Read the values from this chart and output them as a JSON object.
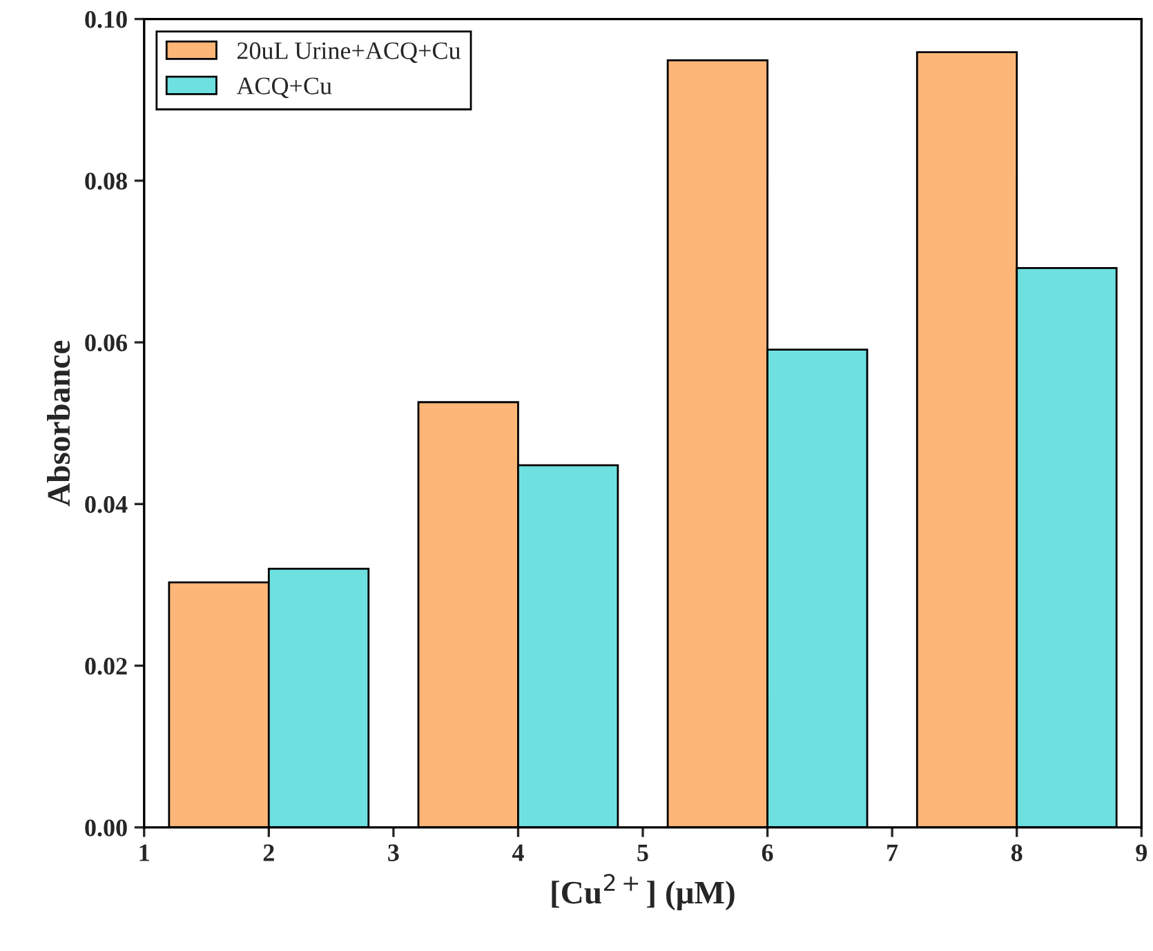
{
  "chart_data": {
    "type": "bar",
    "xlabel": "[Cu$^{2+}$] (μM)",
    "ylabel": "Absorbance",
    "x": [
      2,
      4,
      6,
      8
    ],
    "series": [
      {
        "name": "20uL Urine+ACQ+Cu",
        "color": "#fdb677",
        "values": [
          0.0303,
          0.0526,
          0.0949,
          0.0959
        ]
      },
      {
        "name": "ACQ+Cu",
        "color": "#6fe0e0",
        "values": [
          0.032,
          0.0448,
          0.0591,
          0.0692
        ]
      }
    ],
    "xlim": [
      1,
      9
    ],
    "xticks": [
      1,
      2,
      3,
      4,
      5,
      6,
      7,
      8,
      9
    ],
    "ylim": [
      0,
      0.1
    ],
    "yticks": [
      {
        "value": 0,
        "label": "0.00"
      },
      {
        "value": 0.02,
        "label": "0.02"
      },
      {
        "value": 0.04,
        "label": "0.04"
      },
      {
        "value": 0.06,
        "label": "0.06"
      },
      {
        "value": 0.08,
        "label": "0.08"
      },
      {
        "value": 0.1,
        "label": "0.10"
      }
    ],
    "legend": "top left",
    "grid": false
  }
}
